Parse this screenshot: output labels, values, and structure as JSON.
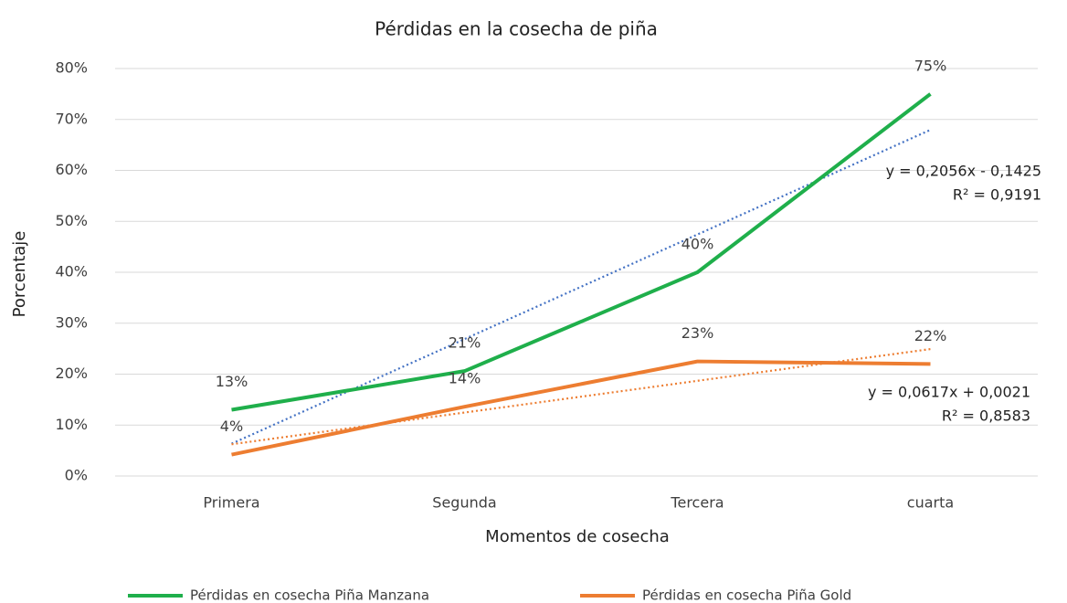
{
  "chart_data": {
    "type": "line",
    "title": "Pérdidas en la cosecha de piña",
    "x_label": "Momentos de cosecha",
    "y_label": "Porcentaje",
    "categories": [
      "Primera",
      "Segunda",
      "Tercera",
      "cuarta"
    ],
    "series": [
      {
        "name": "Pérdidas en cosecha Piña Manzana",
        "color": "#1faf4b",
        "trendline": true,
        "trendline_color": "#4472c4",
        "values": [
          13,
          20.6,
          40,
          75
        ],
        "value_labels": [
          "13%",
          "21%",
          "40%",
          "75%"
        ]
      },
      {
        "name": "Pérdidas en cosecha Piña Gold",
        "color": "#ed7d31",
        "trendline": true,
        "trendline_color": "#ed7d31",
        "values": [
          4.2,
          13.6,
          22.5,
          22
        ],
        "value_labels": [
          "4%",
          "14%",
          "23%",
          "22%"
        ]
      }
    ],
    "annotations": [
      {
        "lines": [
          "y = 0,2056x - 0,1425",
          "R² = 0,9191"
        ]
      },
      {
        "lines": [
          "y = 0,0617x + 0,0021",
          "R² = 0,8583"
        ]
      }
    ],
    "ylim": [
      0,
      80
    ],
    "yticks": [
      {
        "value": 0,
        "label": "0%"
      },
      {
        "value": 10,
        "label": "10%"
      },
      {
        "value": 20,
        "label": "20%"
      },
      {
        "value": 30,
        "label": "30%"
      },
      {
        "value": 40,
        "label": "40%"
      },
      {
        "value": 50,
        "label": "50%"
      },
      {
        "value": 60,
        "label": "60%"
      },
      {
        "value": 70,
        "label": "70%"
      },
      {
        "value": 80,
        "label": "80%"
      }
    ],
    "grid": true,
    "legend": "bottom"
  }
}
